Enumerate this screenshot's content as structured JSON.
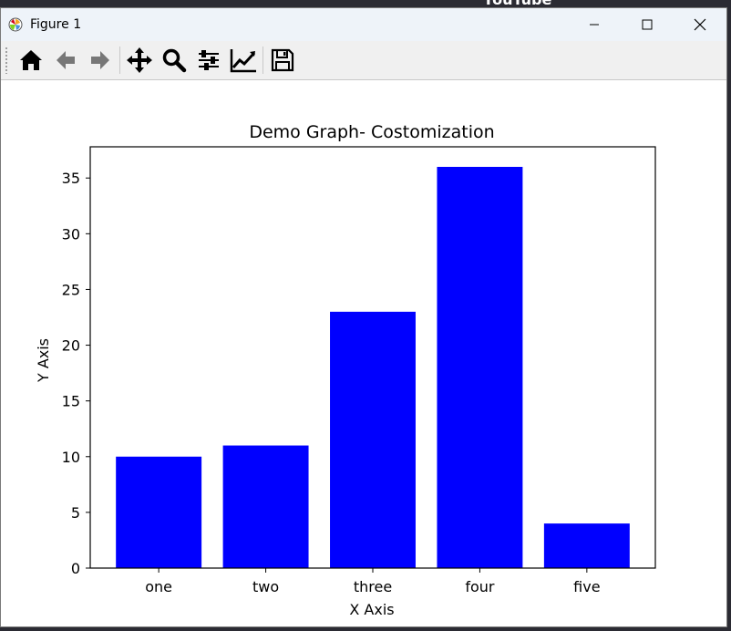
{
  "window": {
    "title": "Figure 1"
  },
  "toolbar": {
    "buttons": [
      {
        "name": "home",
        "icon": "home-icon"
      },
      {
        "name": "back",
        "icon": "arrow-left-icon"
      },
      {
        "name": "forward",
        "icon": "arrow-right-icon"
      },
      {
        "name": "pan",
        "icon": "move-icon"
      },
      {
        "name": "zoom",
        "icon": "magnifier-icon"
      },
      {
        "name": "configure-subplots",
        "icon": "sliders-icon"
      },
      {
        "name": "edit-axis",
        "icon": "line-chart-icon"
      },
      {
        "name": "save",
        "icon": "floppy-disk-icon"
      }
    ]
  },
  "background": {
    "youtube_text": "YouTube"
  },
  "colors": {
    "bar": "#0000ff",
    "titlebar": "#eef3f9",
    "toolbar": "#f0f0f0"
  },
  "chart_data": {
    "type": "bar",
    "title": "Demo Graph- Costomization",
    "xlabel": "X Axis",
    "ylabel": "Y Axis",
    "categories": [
      "one",
      "two",
      "three",
      "four",
      "five"
    ],
    "values": [
      10,
      11,
      23,
      36,
      4
    ],
    "ylim": [
      0,
      37.8
    ],
    "yticks": [
      0,
      5,
      10,
      15,
      20,
      25,
      30,
      35
    ],
    "grid": false,
    "color": "#0000ff"
  }
}
